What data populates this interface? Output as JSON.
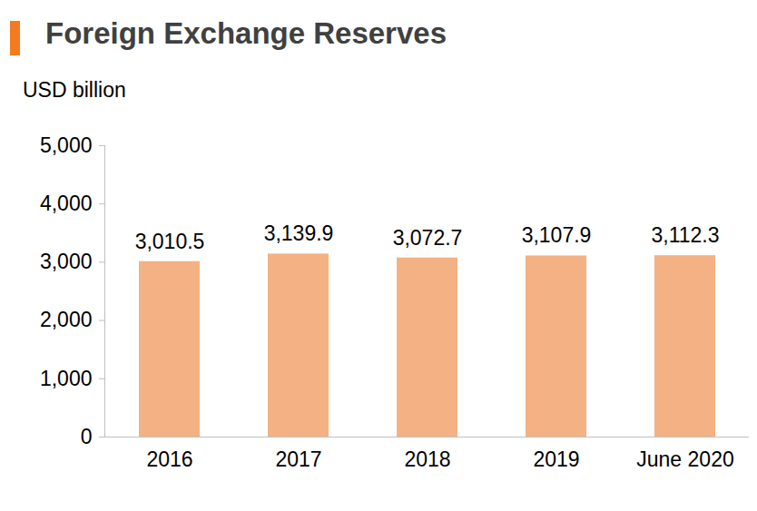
{
  "chart_data": {
    "type": "bar",
    "title": "Foreign Exchange Reserves",
    "y_label": "USD billion",
    "categories": [
      "2016",
      "2017",
      "2018",
      "2019",
      "June 2020"
    ],
    "values": [
      3010.5,
      3139.9,
      3072.7,
      3107.9,
      3112.3
    ],
    "value_labels": [
      "3,010.5",
      "3,139.9",
      "3,072.7",
      "3,107.9",
      "3,112.3"
    ],
    "color": "#f4b183",
    "ylim": [
      0,
      5000
    ],
    "yticks": [
      0,
      {
        "value": 1000,
        "label": "1,000"
      },
      {
        "value": 2000,
        "label": "2,000"
      },
      {
        "value": 3000,
        "label": "3,000"
      },
      {
        "value": 4000,
        "label": "4,000"
      },
      {
        "value": 5000,
        "label": "5,000"
      }
    ],
    "grid": false,
    "data_labels": true
  }
}
